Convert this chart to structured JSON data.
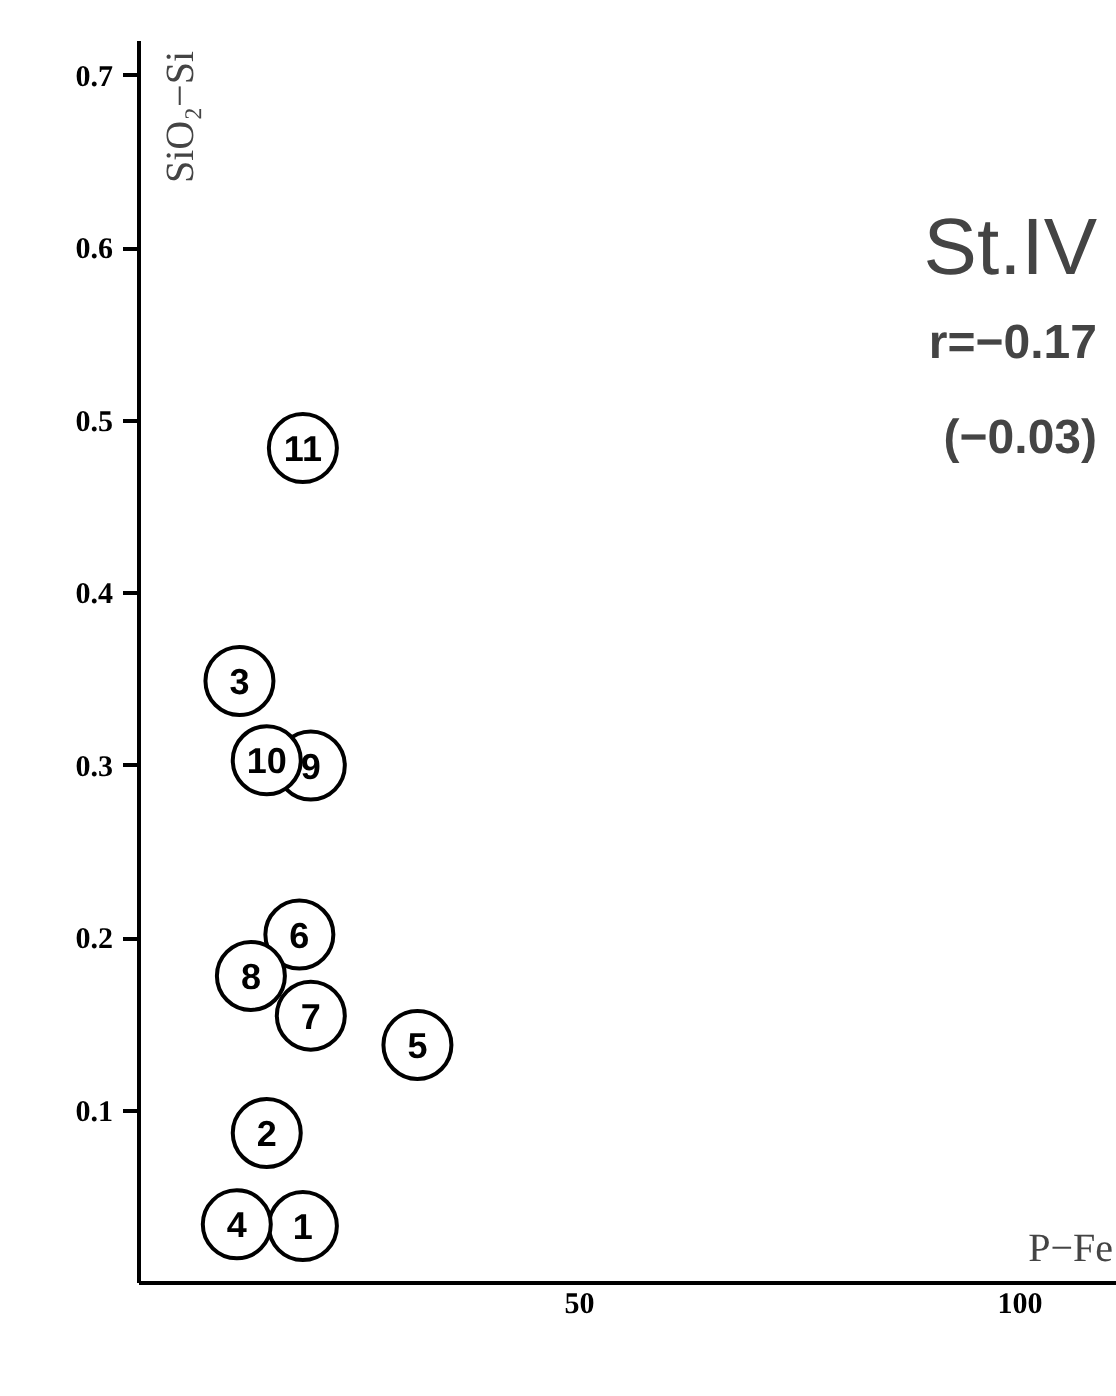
{
  "chart_data": {
    "type": "scatter",
    "xlabel": "P−Fe",
    "ylabel": "SiO₂−Si",
    "x": [
      18.6,
      14.5,
      11.4,
      11.1,
      31.6,
      18.2,
      19.5,
      12.7,
      19.5,
      14.5,
      18.6
    ],
    "values": [
      0.033,
      0.087,
      0.349,
      0.034,
      0.138,
      0.202,
      0.155,
      0.178,
      0.3,
      0.303,
      0.484
    ],
    "color": "#000000",
    "marker": "circle",
    "annotations": [
      {
        "text": "1",
        "x": 18.6,
        "y": 0.033
      },
      {
        "text": "2",
        "x": 14.5,
        "y": 0.087
      },
      {
        "text": "3",
        "x": 11.4,
        "y": 0.349
      },
      {
        "text": "4",
        "x": 11.1,
        "y": 0.034
      },
      {
        "text": "5",
        "x": 31.6,
        "y": 0.138
      },
      {
        "text": "6",
        "x": 18.2,
        "y": 0.202
      },
      {
        "text": "7",
        "x": 19.5,
        "y": 0.155
      },
      {
        "text": "8",
        "x": 12.7,
        "y": 0.178
      },
      {
        "text": "9",
        "x": 19.5,
        "y": 0.3
      },
      {
        "text": "10",
        "x": 14.5,
        "y": 0.303
      },
      {
        "text": "11",
        "x": 18.6,
        "y": 0.484
      },
      "St.IV",
      "r=−0.17",
      "(−0.03)"
    ],
    "xlim": [
      0,
      111
    ],
    "ylim": [
      0,
      0.72
    ],
    "xticks": [
      50,
      100
    ],
    "yticks": [
      0.1,
      0.2,
      0.3,
      0.4,
      0.5,
      0.6,
      0.7
    ],
    "grid": false
  }
}
